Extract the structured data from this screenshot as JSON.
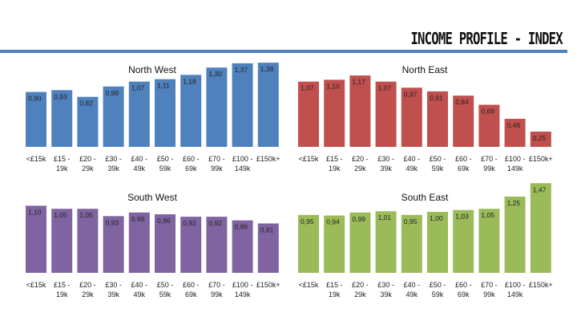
{
  "page": {
    "title": "INCOME PROFILE - INDEX"
  },
  "chart_data": [
    {
      "type": "bar",
      "title": "North West",
      "color": "#4f81bd",
      "categories": [
        [
          "<£15k"
        ],
        [
          "£15 -",
          "19k"
        ],
        [
          "£20 -",
          "29k"
        ],
        [
          "£30 -",
          "39k"
        ],
        [
          "£40 -",
          "49k"
        ],
        [
          "£50 -",
          "59k"
        ],
        [
          "£60 -",
          "69k"
        ],
        [
          "£70 -",
          "99k"
        ],
        [
          "£100 -",
          "149k"
        ],
        [
          "£150k+"
        ]
      ],
      "values": [
        0.9,
        0.93,
        0.82,
        0.99,
        1.07,
        1.11,
        1.18,
        1.3,
        1.37,
        1.38
      ],
      "value_labels": [
        "0,90",
        "0,93",
        "0,82",
        "0,99",
        "1,07",
        "1,11",
        "1,18",
        "1,30",
        "1,37",
        "1,38"
      ],
      "grid": false,
      "legend": "none"
    },
    {
      "type": "bar",
      "title": "North East",
      "color": "#c0504d",
      "categories": [
        [
          "<£15k"
        ],
        [
          "£15 -",
          "19k"
        ],
        [
          "£20 -",
          "29k"
        ],
        [
          "£30 -",
          "39k"
        ],
        [
          "£40 -",
          "49k"
        ],
        [
          "£50 -",
          "59k"
        ],
        [
          "£60 -",
          "69k"
        ],
        [
          "£70 -",
          "99k"
        ],
        [
          "£100 -",
          "149k"
        ],
        [
          "£150k+"
        ]
      ],
      "values": [
        1.07,
        1.1,
        1.17,
        1.07,
        0.97,
        0.91,
        0.84,
        0.69,
        0.46,
        0.25
      ],
      "value_labels": [
        "1,07",
        "1,10",
        "1,17",
        "1,07",
        "0,97",
        "0,91",
        "0,84",
        "0,69",
        "0,46",
        "0,25"
      ],
      "grid": false,
      "legend": "none"
    },
    {
      "type": "bar",
      "title": "South West",
      "color": "#8064a2",
      "categories": [
        [
          "<£15k"
        ],
        [
          "£15 -",
          "19k"
        ],
        [
          "£20 -",
          "29k"
        ],
        [
          "£30 -",
          "39k"
        ],
        [
          "£40 -",
          "49k"
        ],
        [
          "£50 -",
          "59k"
        ],
        [
          "£60 -",
          "69k"
        ],
        [
          "£70 -",
          "99k"
        ],
        [
          "£100 -",
          "149k"
        ],
        [
          "£150k+"
        ]
      ],
      "values": [
        1.1,
        1.05,
        1.05,
        0.93,
        0.99,
        0.96,
        0.92,
        0.92,
        0.86,
        0.81
      ],
      "value_labels": [
        "1,10",
        "1,05",
        "1,05",
        "0,93",
        "0,99",
        "0,96",
        "0,92",
        "0,92",
        "0,86",
        "0,81"
      ],
      "grid": false,
      "legend": "none"
    },
    {
      "type": "bar",
      "title": "South East",
      "color": "#9bbb59",
      "categories": [
        [
          "<£15k"
        ],
        [
          "£15 -",
          "19k"
        ],
        [
          "£20 -",
          "29k"
        ],
        [
          "£30 -",
          "39k"
        ],
        [
          "£40 -",
          "49k"
        ],
        [
          "£50 -",
          "59k"
        ],
        [
          "£60 -",
          "69k"
        ],
        [
          "£70 -",
          "99k"
        ],
        [
          "£100 -",
          "149k"
        ],
        [
          "£150k+"
        ]
      ],
      "values": [
        0.95,
        0.94,
        0.99,
        1.01,
        0.95,
        1.0,
        1.03,
        1.05,
        1.25,
        1.47
      ],
      "value_labels": [
        "0,95",
        "0,94",
        "0,99",
        "1,01",
        "0,95",
        "1,00",
        "1,03",
        "1,05",
        "1,25",
        "1,47"
      ],
      "grid": false,
      "legend": "none"
    }
  ]
}
